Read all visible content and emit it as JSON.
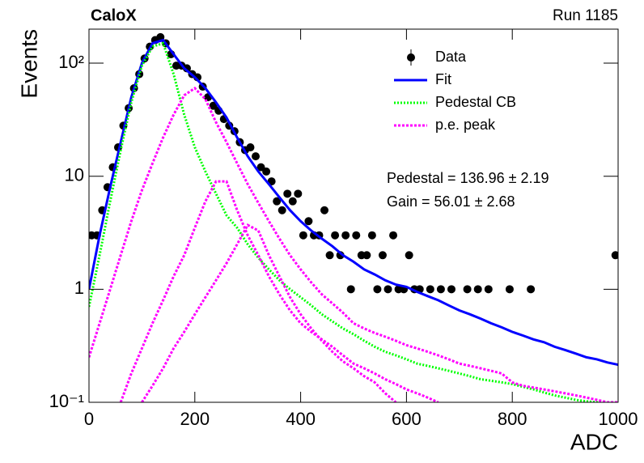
{
  "chart_data": {
    "type": "log_fit",
    "title": "CaloX",
    "subtitle": "Run 1185",
    "x_label": "ADC",
    "y_label": "Events",
    "log_y": true,
    "xlim": [
      0,
      1000
    ],
    "ylim": [
      0.1,
      200
    ],
    "xticks": [
      0,
      200,
      400,
      600,
      800,
      1000
    ],
    "yticks": [
      {
        "value": 0.1,
        "label": "10⁻¹"
      },
      1,
      10,
      {
        "value": 100,
        "label": "10²"
      }
    ],
    "annotations": [
      "Pedestal = 136.96 ± 2.19",
      "Gain = 56.01 ± 2.68"
    ],
    "legend": "upper right",
    "data": {
      "name": "Data",
      "color": "#000000",
      "x": [
        5,
        15,
        25,
        35,
        45,
        55,
        65,
        75,
        85,
        95,
        105,
        115,
        125,
        135,
        145,
        155,
        165,
        175,
        185,
        195,
        205,
        215,
        225,
        235,
        245,
        255,
        265,
        275,
        285,
        295,
        305,
        315,
        325,
        335,
        345,
        355,
        365,
        375,
        385,
        395,
        405,
        415,
        425,
        435,
        445,
        455,
        465,
        475,
        485,
        495,
        505,
        515,
        525,
        535,
        545,
        555,
        565,
        575,
        585,
        595,
        605,
        615,
        625,
        645,
        665,
        685,
        715,
        735,
        755,
        795,
        835,
        995
      ],
      "values": [
        3,
        3,
        5,
        8,
        12,
        18,
        28,
        40,
        60,
        80,
        110,
        140,
        160,
        170,
        150,
        120,
        95,
        95,
        90,
        80,
        75,
        62,
        50,
        42,
        38,
        32,
        28,
        25,
        20,
        17,
        18,
        15,
        12,
        11,
        9,
        6,
        5,
        7,
        6,
        7,
        3,
        4,
        3,
        3,
        5,
        2,
        3,
        2,
        3,
        1,
        3,
        2,
        2,
        3,
        1,
        2,
        1,
        3,
        1,
        1,
        2,
        1,
        1,
        1,
        1,
        1,
        1,
        1,
        1,
        1,
        1,
        2
      ]
    },
    "x": [
      0,
      20,
      40,
      60,
      80,
      100,
      120,
      140,
      160,
      180,
      200,
      220,
      240,
      260,
      280,
      300,
      320,
      340,
      360,
      380,
      400,
      420,
      440,
      460,
      480,
      500,
      520,
      540,
      560,
      580,
      600,
      620,
      640,
      660,
      680,
      700,
      720,
      740,
      760,
      780,
      800,
      820,
      840,
      860,
      880,
      900,
      920,
      940,
      960,
      980,
      1000
    ],
    "series": [
      {
        "name": "Fit",
        "color": "#0000ff",
        "style": "solid",
        "values": [
          1,
          3,
          8,
          20,
          50,
          100,
          150,
          160,
          120,
          90,
          75,
          60,
          45,
          33,
          22,
          15,
          11,
          8.5,
          6.5,
          5,
          4,
          3.3,
          2.8,
          2.4,
          2,
          1.75,
          1.5,
          1.35,
          1.2,
          1.1,
          1.05,
          0.95,
          0.87,
          0.8,
          0.72,
          0.65,
          0.6,
          0.55,
          0.5,
          0.46,
          0.42,
          0.39,
          0.36,
          0.34,
          0.31,
          0.29,
          0.27,
          0.25,
          0.24,
          0.225,
          0.215
        ]
      },
      {
        "name": "Pedestal CB",
        "color": "#00ff00",
        "style": "dotted",
        "values": [
          0.7,
          2,
          6,
          17,
          45,
          95,
          140,
          150,
          80,
          35,
          18,
          11,
          7,
          4.5,
          3.5,
          2.5,
          1.9,
          1.5,
          1.2,
          1,
          0.85,
          0.72,
          0.6,
          0.52,
          0.45,
          0.4,
          0.35,
          0.31,
          0.28,
          0.26,
          0.24,
          0.22,
          0.21,
          0.2,
          0.19,
          0.18,
          0.17,
          0.16,
          0.155,
          0.15,
          0.145,
          0.137,
          0.13,
          0.122,
          0.115,
          0.11,
          0.105,
          0.102,
          0.1,
          0.095,
          0.09
        ]
      },
      {
        "name": "p.e. peak",
        "color": "#ff00ff",
        "style": "dotted",
        "values": [
          [
            0.25,
            0.5,
            1,
            2,
            4,
            7.5,
            13,
            22,
            35,
            52,
            60,
            48,
            30,
            20,
            13,
            8.5,
            5.8,
            4,
            2.8,
            2,
            1.5,
            1.15,
            0.9,
            0.75,
            0.62,
            0.5,
            0.45,
            0.41,
            0.38,
            0.35,
            0.32,
            0.3,
            0.28,
            0.26,
            0.24,
            0.22,
            0.21,
            0.2,
            0.19,
            0.18,
            0.15,
            0.14,
            0.135,
            0.13,
            0.125,
            0.12,
            0.115,
            0.11,
            0.105,
            0.1,
            0.1
          ],
          [
            null,
            null,
            null,
            0.1,
            0.18,
            0.3,
            0.5,
            0.8,
            1.3,
            2,
            3.5,
            6,
            9,
            9,
            5,
            3,
            2,
            1.3,
            0.9,
            0.65,
            0.5,
            0.42,
            0.36,
            0.31,
            0.26,
            0.22,
            0.2,
            0.18,
            0.16,
            0.145,
            0.13,
            0.12,
            0.11,
            0.1,
            null,
            null,
            null,
            null,
            null,
            null,
            null,
            null,
            null,
            null,
            null,
            null,
            null,
            null,
            null,
            null,
            null
          ],
          [
            null,
            null,
            null,
            null,
            null,
            0.1,
            0.14,
            0.2,
            0.3,
            0.42,
            0.6,
            0.85,
            1.2,
            1.7,
            2.5,
            3.7,
            3.3,
            2,
            1.3,
            0.85,
            0.6,
            0.45,
            0.35,
            0.28,
            0.23,
            0.2,
            0.17,
            0.15,
            0.12,
            0.1,
            null,
            null,
            null,
            null,
            null,
            null,
            null,
            null,
            null,
            null,
            null,
            null,
            null,
            null,
            null,
            null,
            null,
            null,
            null,
            null,
            null
          ]
        ]
      }
    ]
  }
}
